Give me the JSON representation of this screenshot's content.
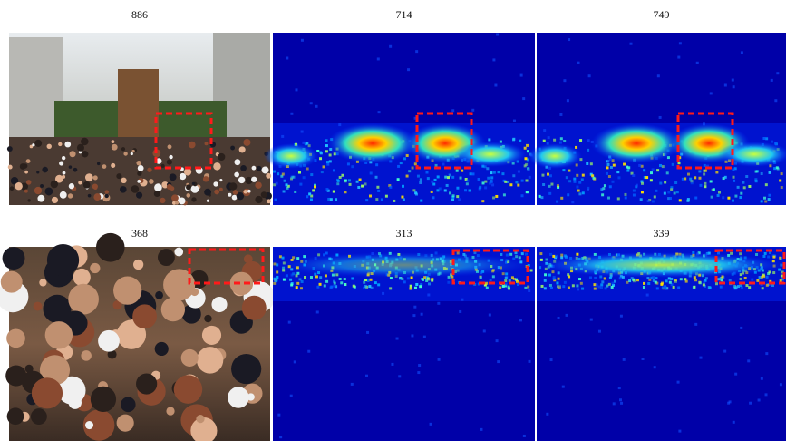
{
  "figure": {
    "rows": [
      [
        {
          "label": 886
        },
        {
          "label": 714
        },
        {
          "label": 749
        }
      ],
      [
        {
          "label": 368
        },
        {
          "label": 313
        },
        {
          "label": 339
        }
      ]
    ]
  }
}
